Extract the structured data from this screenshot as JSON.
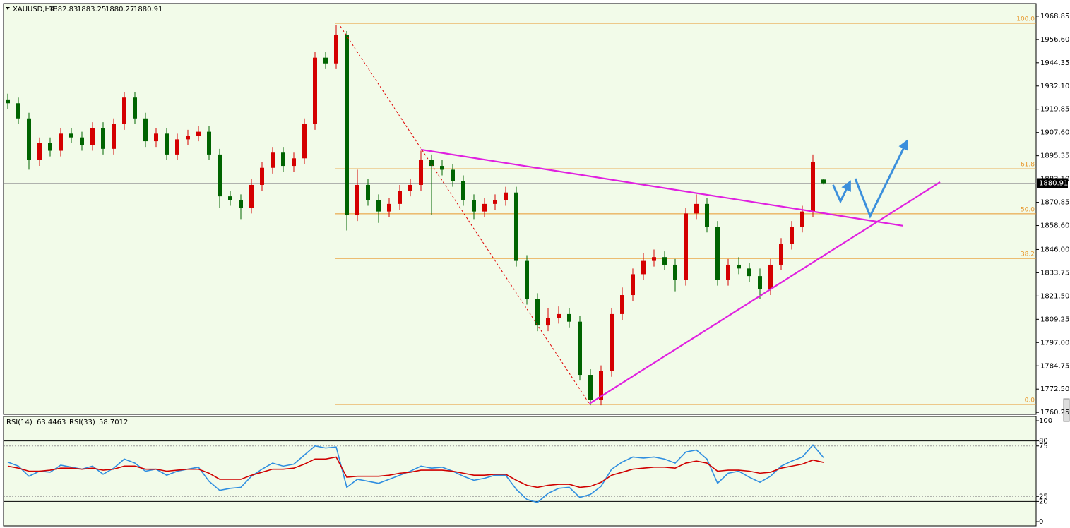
{
  "chart_data": [
    {
      "type": "candlestick",
      "symbol": "XAUUSD,H4",
      "up_color": "#d40000",
      "down_color": "#006400",
      "open": [
        1925,
        1923,
        1915,
        1893,
        1902,
        1898,
        1907,
        1905,
        1901,
        1910,
        1899,
        1912,
        1926,
        1915,
        1903,
        1907,
        1896,
        1904,
        1906,
        1908,
        1896,
        1874,
        1872,
        1868,
        1880,
        1889,
        1897,
        1890,
        1894,
        1912,
        1947,
        1944,
        1959,
        1864,
        1880,
        1872,
        1866,
        1870,
        1877,
        1880,
        1893,
        1890,
        1888,
        1882,
        1872,
        1866,
        1870,
        1872,
        1876,
        1840,
        1820,
        1806,
        1810,
        1812,
        1808,
        1780,
        1767,
        1782,
        1812,
        1822,
        1833,
        1840,
        1842,
        1838,
        1830,
        1865,
        1870,
        1858,
        1830,
        1838,
        1836,
        1832,
        1825,
        1838,
        1849,
        1858,
        1866,
        1882.83
      ],
      "high": [
        1928,
        1926,
        1918,
        1905,
        1905,
        1910,
        1910,
        1908,
        1913,
        1913,
        1915,
        1929,
        1929,
        1918,
        1910,
        1910,
        1907,
        1909,
        1911,
        1911,
        1899,
        1877,
        1875,
        1883,
        1892,
        1900,
        1900,
        1897,
        1915,
        1950,
        1950,
        1964,
        1961,
        1888,
        1883,
        1875,
        1873,
        1880,
        1883,
        1898,
        1896,
        1893,
        1891,
        1885,
        1875,
        1873,
        1875,
        1879,
        1879,
        1843,
        1823,
        1815,
        1816,
        1815,
        1811,
        1783,
        1785,
        1815,
        1826,
        1836,
        1844,
        1846,
        1845,
        1841,
        1868,
        1875,
        1873,
        1861,
        1841,
        1842,
        1839,
        1836,
        1841,
        1852,
        1861,
        1869,
        1896,
        1883.25
      ],
      "low": [
        1920,
        1912,
        1888,
        1890,
        1895,
        1895,
        1902,
        1898,
        1898,
        1896,
        1896,
        1909,
        1912,
        1900,
        1900,
        1893,
        1893,
        1901,
        1903,
        1893,
        1868,
        1869,
        1862,
        1865,
        1877,
        1886,
        1887,
        1887,
        1891,
        1909,
        1941,
        1941,
        1856,
        1861,
        1869,
        1860,
        1863,
        1867,
        1874,
        1877,
        1864,
        1885,
        1879,
        1869,
        1862,
        1863,
        1867,
        1869,
        1837,
        1817,
        1803,
        1803,
        1807,
        1805,
        1777,
        1764,
        1764,
        1779,
        1809,
        1819,
        1830,
        1837,
        1835,
        1824,
        1827,
        1862,
        1855,
        1827,
        1827,
        1833,
        1829,
        1820,
        1822,
        1835,
        1846,
        1855,
        1863,
        1880.27
      ],
      "close": [
        1923,
        1915,
        1893,
        1902,
        1898,
        1907,
        1905,
        1901,
        1910,
        1899,
        1912,
        1926,
        1915,
        1903,
        1907,
        1896,
        1904,
        1906,
        1908,
        1896,
        1874,
        1872,
        1868,
        1880,
        1889,
        1897,
        1890,
        1894,
        1912,
        1947,
        1944,
        1959,
        1864,
        1880,
        1872,
        1866,
        1870,
        1877,
        1880,
        1893,
        1890,
        1888,
        1882,
        1872,
        1866,
        1870,
        1872,
        1876,
        1840,
        1820,
        1806,
        1810,
        1812,
        1808,
        1780,
        1767,
        1782,
        1812,
        1822,
        1833,
        1840,
        1842,
        1838,
        1830,
        1865,
        1870,
        1858,
        1830,
        1838,
        1836,
        1832,
        1825,
        1838,
        1849,
        1858,
        1866,
        1892,
        1880.91
      ],
      "ylim": [
        1759.2,
        1975.5
      ],
      "yticks": [
        {
          "value": 1968.85,
          "label": "1968.85"
        },
        {
          "value": 1956.6,
          "label": "1956.60"
        },
        {
          "value": 1944.35,
          "label": "1944.35"
        },
        {
          "value": 1932.1,
          "label": "1932.10"
        },
        {
          "value": 1919.85,
          "label": "1919.85"
        },
        {
          "value": 1907.6,
          "label": "1907.60"
        },
        {
          "value": 1895.35,
          "label": "1895.35"
        },
        {
          "value": 1883.1,
          "label": "1883.10"
        },
        {
          "value": 1870.85,
          "label": "1870.85"
        },
        {
          "value": 1858.6,
          "label": "1858.60"
        },
        {
          "value": 1846,
          "label": "1846.00"
        },
        {
          "value": 1833.75,
          "label": "1833.75"
        },
        {
          "value": 1821.5,
          "label": "1821.50"
        },
        {
          "value": 1809.25,
          "label": "1809.25"
        },
        {
          "value": 1797,
          "label": "1797.00"
        },
        {
          "value": 1784.75,
          "label": "1784.75"
        },
        {
          "value": 1772.5,
          "label": "1772.50"
        },
        {
          "value": 1760.25,
          "label": "1760.25"
        }
      ],
      "fib_color": "#e8962a",
      "fib_levels": [
        {
          "value": 1965.1,
          "label": "100.0"
        },
        {
          "value": 1888.5,
          "label": "61.8"
        },
        {
          "value": 1864.8,
          "label": "50.0"
        },
        {
          "value": 1841.3,
          "label": "38.2"
        },
        {
          "value": 1764.4,
          "label": "0.0"
        }
      ],
      "fib_start": 30.9,
      "trendlines": [
        {
          "color": "#e020e0",
          "style": "solid",
          "points": [
            [
              39,
              1898.6
            ],
            [
              84.5,
              1858.5
            ]
          ]
        },
        {
          "color": "#e020e0",
          "style": "solid",
          "points": [
            [
              54.9,
              1764.8
            ],
            [
              88,
              1881.5
            ]
          ]
        },
        {
          "color": "#e00000",
          "style": "dashed",
          "points": [
            [
              31.4,
              1963.5
            ],
            [
              54.9,
              1764.8
            ]
          ]
        }
      ],
      "arrows": [
        {
          "color": "#3b8fdc",
          "points": [
            [
              77.9,
              1880
            ],
            [
              78.6,
              1871.4
            ],
            [
              79.5,
              1881.5
            ]
          ]
        },
        {
          "color": "#3b8fdc",
          "points": [
            [
              80,
              1883.3
            ],
            [
              81.4,
              1863.6
            ],
            [
              84.9,
              1903.1
            ]
          ]
        }
      ]
    },
    {
      "type": "line",
      "series": [
        {
          "name": "RSI(14)",
          "color": "#2f8ee0",
          "values": [
            59,
            55,
            45,
            50,
            49,
            56,
            54,
            52,
            55,
            47,
            53,
            62,
            58,
            50,
            52,
            46,
            50,
            52,
            54,
            40,
            31,
            33,
            34,
            45,
            52,
            58,
            55,
            57,
            66,
            75,
            73,
            74,
            34,
            42,
            40,
            38,
            42,
            46,
            50,
            55,
            53,
            54,
            50,
            45,
            41,
            43,
            46,
            46,
            32,
            22,
            19,
            28,
            33,
            34,
            24,
            27,
            35,
            52,
            59,
            64,
            63,
            64,
            62,
            58,
            69,
            71,
            62,
            38,
            48,
            50,
            44,
            39,
            45,
            55,
            60,
            64,
            76,
            63.4463
          ]
        },
        {
          "name": "RSI(33)",
          "color": "#d00000",
          "values": [
            55,
            53,
            50,
            50,
            51,
            53,
            53,
            52,
            53,
            51,
            52,
            55,
            55,
            52,
            52,
            50,
            51,
            52,
            52,
            48,
            42,
            42,
            42,
            46,
            49,
            52,
            52,
            53,
            57,
            62,
            62,
            64,
            44,
            45,
            45,
            45,
            46,
            48,
            49,
            51,
            51,
            51,
            50,
            48,
            46,
            46,
            47,
            47,
            41,
            36,
            34,
            36,
            37,
            37,
            34,
            35,
            39,
            46,
            49,
            52,
            53,
            54,
            54,
            53,
            58,
            60,
            58,
            50,
            51,
            51,
            50,
            48,
            49,
            53,
            55,
            57,
            61,
            58.7012
          ]
        }
      ],
      "ylim": [
        0,
        100
      ],
      "yticks": [
        100,
        80,
        75,
        25,
        20,
        0
      ],
      "levels": [
        80,
        75,
        25,
        20
      ],
      "level_styles": [
        "solid",
        "dotted",
        "dotted",
        "solid"
      ]
    }
  ]
}
